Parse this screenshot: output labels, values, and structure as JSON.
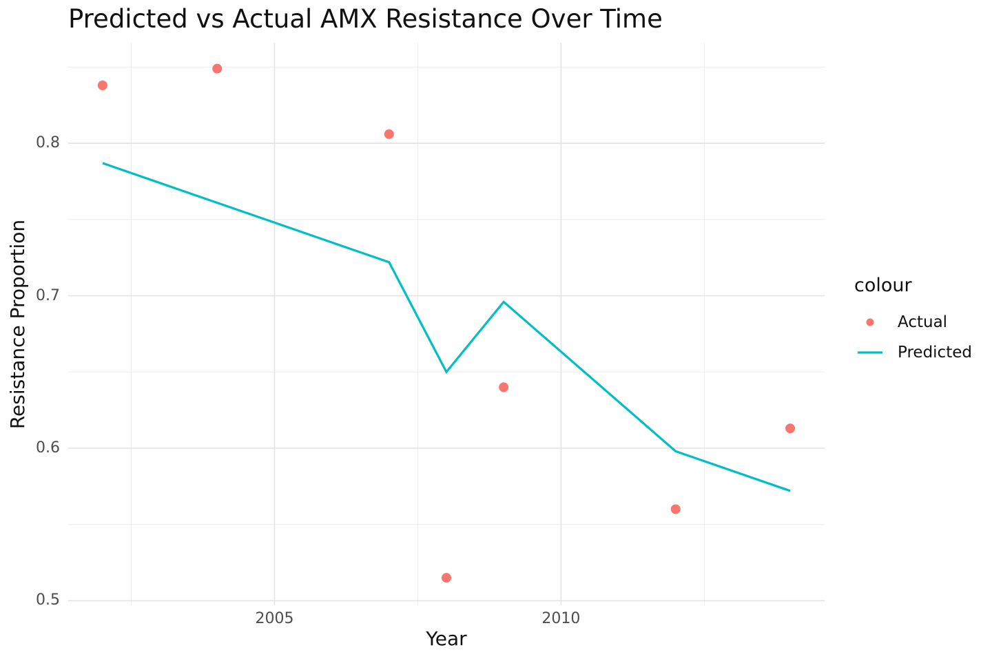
{
  "title": "Predicted vs Actual AMX Resistance Over Time",
  "colors": {
    "background": "#ffffff",
    "actual": "#F8766D",
    "predicted": "#00BFC4",
    "grid_major": "#E4E4E4",
    "grid_minor": "#EDEDED",
    "tick_text": "#4d4d4d",
    "text": "#111111"
  },
  "chart_data": {
    "type": "line",
    "title": "Predicted vs Actual AMX Resistance Over Time",
    "xlabel": "Year",
    "ylabel": "Resistance Proportion",
    "x": [
      2002,
      2004,
      2007,
      2008,
      2009,
      2012,
      2014
    ],
    "series": [
      {
        "name": "Actual",
        "geom": "point",
        "color": "#F8766D",
        "values": [
          0.838,
          0.849,
          0.806,
          0.515,
          0.64,
          0.56,
          0.613
        ]
      },
      {
        "name": "Predicted",
        "geom": "line",
        "color": "#00BFC4",
        "values": [
          0.787,
          0.761,
          0.722,
          0.65,
          0.696,
          0.598,
          0.572
        ]
      }
    ],
    "xlim": [
      2001.4,
      2014.6
    ],
    "ylim": [
      0.497,
      0.866
    ],
    "axes": {
      "x_ticks": [
        {
          "v": 2005,
          "label": "2005"
        },
        {
          "v": 2010,
          "label": "2010"
        }
      ],
      "y_ticks": [
        {
          "v": 0.5,
          "label": "0.5"
        },
        {
          "v": 0.6,
          "label": "0.6"
        },
        {
          "v": 0.7,
          "label": "0.7"
        },
        {
          "v": 0.8,
          "label": "0.8"
        }
      ],
      "x_minor": [
        2002.5,
        2007.5,
        2012.5
      ],
      "y_minor": [
        0.55,
        0.65,
        0.75,
        0.85
      ]
    },
    "grid": "major+minor",
    "legend": {
      "title": "colour",
      "position": "right",
      "items": [
        {
          "label": "Actual",
          "marker": "point"
        },
        {
          "label": "Predicted",
          "marker": "line"
        }
      ]
    }
  }
}
